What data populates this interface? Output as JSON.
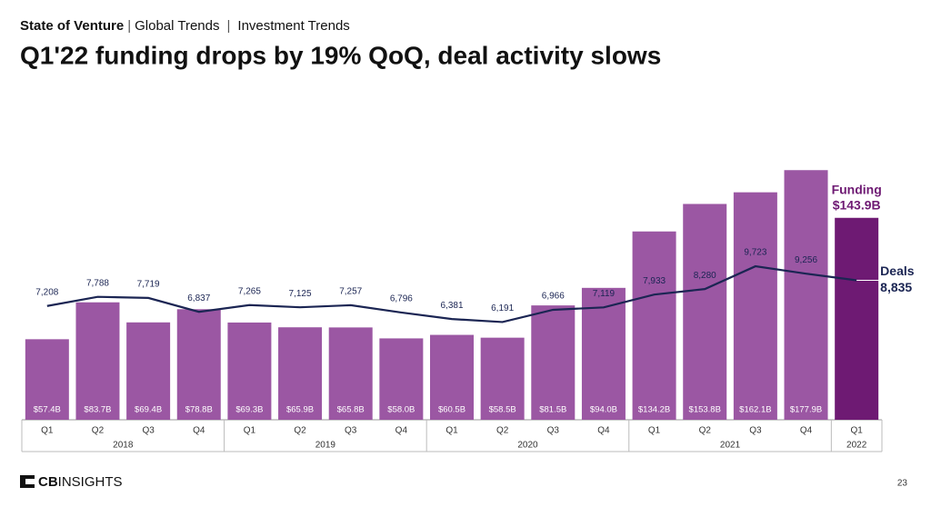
{
  "header": {
    "section": "State of Venture",
    "breadcrumb": [
      "Global Trends",
      "Investment Trends"
    ]
  },
  "chart_data": {
    "type": "bar-line",
    "title": "Q1'22 funding drops by 19% QoQ, deal activity slows",
    "categories": [
      "Q1",
      "Q2",
      "Q3",
      "Q4",
      "Q1",
      "Q2",
      "Q3",
      "Q4",
      "Q1",
      "Q2",
      "Q3",
      "Q4",
      "Q1",
      "Q2",
      "Q3",
      "Q4",
      "Q1"
    ],
    "category_groups": [
      {
        "label": "2018",
        "start": 0,
        "end": 3
      },
      {
        "label": "2019",
        "start": 4,
        "end": 7
      },
      {
        "label": "2020",
        "start": 8,
        "end": 11
      },
      {
        "label": "2021",
        "start": 12,
        "end": 15
      },
      {
        "label": "2022",
        "start": 16,
        "end": 16
      }
    ],
    "ylim": [
      0,
      180
    ],
    "y2lim": [
      0,
      16000
    ],
    "series": [
      {
        "name": "Funding",
        "type": "bar",
        "color": "#9b57a3",
        "highlight_color": "#6e1a73",
        "values": [
          57.4,
          83.7,
          69.4,
          78.8,
          69.3,
          65.9,
          65.8,
          58.0,
          60.5,
          58.5,
          81.5,
          94.0,
          134.2,
          153.8,
          162.1,
          177.9,
          143.9
        ],
        "value_labels": [
          "$57.4B",
          "$83.7B",
          "$69.4B",
          "$78.8B",
          "$69.3B",
          "$65.9B",
          "$65.8B",
          "$58.0B",
          "$60.5B",
          "$58.5B",
          "$81.5B",
          "$94.0B",
          "$134.2B",
          "$153.8B",
          "$162.1B",
          "$177.9B",
          "$143.9B"
        ]
      },
      {
        "name": "Deals",
        "type": "line",
        "axis": "y2",
        "color": "#1b2553",
        "values": [
          7208,
          7788,
          7719,
          6837,
          7265,
          7125,
          7257,
          6796,
          6381,
          6191,
          6966,
          7119,
          7933,
          8280,
          9723,
          9256,
          8835
        ],
        "value_labels": [
          "7,208",
          "7,788",
          "7,719",
          "6,837",
          "7,265",
          "7,125",
          "7,257",
          "6,796",
          "6,381",
          "6,191",
          "6,966",
          "7,119",
          "7,933",
          "8,280",
          "9,723",
          "9,256",
          "8,835"
        ]
      }
    ]
  },
  "footer": {
    "brand": [
      "CB",
      "INSIGHTS"
    ],
    "page": "23"
  }
}
